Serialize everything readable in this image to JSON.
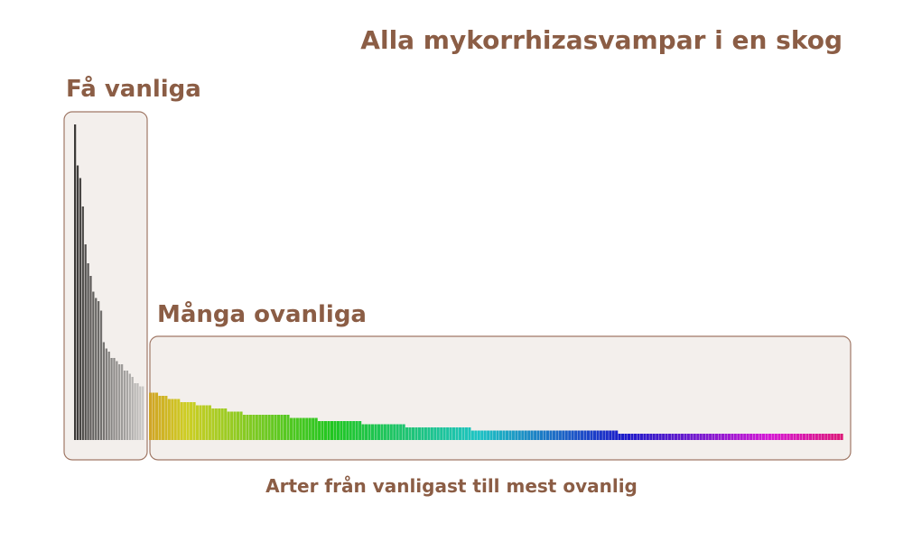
{
  "chart_data": {
    "type": "bar",
    "title": "Alla mykorrhizasvampar i en skog",
    "xlabel": "Arter från vanligast till mest ovanlig",
    "ylabel": "",
    "grid": false,
    "legend": "none",
    "ylim": [
      0,
      100
    ],
    "groups": [
      {
        "label": "Få vanliga",
        "color_scheme": "grayscale",
        "box_fill": "#f3efec",
        "box_stroke": "#a07866"
      },
      {
        "label": "Många ovanliga",
        "color_scheme": "spectrum",
        "box_fill": "#f3efec",
        "box_stroke": "#a07866"
      }
    ],
    "series": [
      {
        "group": "Få vanliga",
        "values": [
          100,
          87,
          83,
          74,
          62,
          56,
          52,
          47,
          45,
          44,
          41,
          31,
          29,
          28,
          26,
          26,
          25,
          24,
          24,
          22,
          22,
          21,
          20,
          18,
          18,
          17,
          17
        ]
      },
      {
        "group": "Många ovanliga",
        "values": [
          15,
          15,
          15,
          14,
          14,
          14,
          13,
          13,
          13,
          13,
          12,
          12,
          12,
          12,
          12,
          11,
          11,
          11,
          11,
          11,
          10,
          10,
          10,
          10,
          10,
          9,
          9,
          9,
          9,
          9,
          8,
          8,
          8,
          8,
          8,
          8,
          8,
          8,
          8,
          8,
          8,
          8,
          8,
          8,
          8,
          7,
          7,
          7,
          7,
          7,
          7,
          7,
          7,
          7,
          6,
          6,
          6,
          6,
          6,
          6,
          6,
          6,
          6,
          6,
          6,
          6,
          6,
          6,
          5,
          5,
          5,
          5,
          5,
          5,
          5,
          5,
          5,
          5,
          5,
          5,
          5,
          5,
          4,
          4,
          4,
          4,
          4,
          4,
          4,
          4,
          4,
          4,
          4,
          4,
          4,
          4,
          4,
          4,
          4,
          4,
          4,
          4,
          4,
          3,
          3,
          3,
          3,
          3,
          3,
          3,
          3,
          3,
          3,
          3,
          3,
          3,
          3,
          3,
          3,
          3,
          3,
          3,
          3,
          3,
          3,
          3,
          3,
          3,
          3,
          3,
          3,
          3,
          3,
          3,
          3,
          3,
          3,
          3,
          3,
          3,
          3,
          3,
          3,
          3,
          3,
          3,
          3,
          3,
          3,
          3,
          2,
          2,
          2,
          2,
          2,
          2,
          2,
          2,
          2,
          2,
          2,
          2,
          2,
          2,
          2,
          2,
          2,
          2,
          2,
          2,
          2,
          2,
          2,
          2,
          2,
          2,
          2,
          2,
          2,
          2,
          2,
          2,
          2,
          2,
          2,
          2,
          2,
          2,
          2,
          2,
          2,
          2,
          2,
          2,
          2,
          2,
          2,
          2,
          2,
          2,
          2,
          2,
          2,
          2,
          2,
          2,
          2,
          2,
          2,
          2,
          2,
          2,
          2,
          2,
          2,
          2,
          2,
          2,
          2,
          2,
          2,
          2
        ]
      }
    ]
  }
}
